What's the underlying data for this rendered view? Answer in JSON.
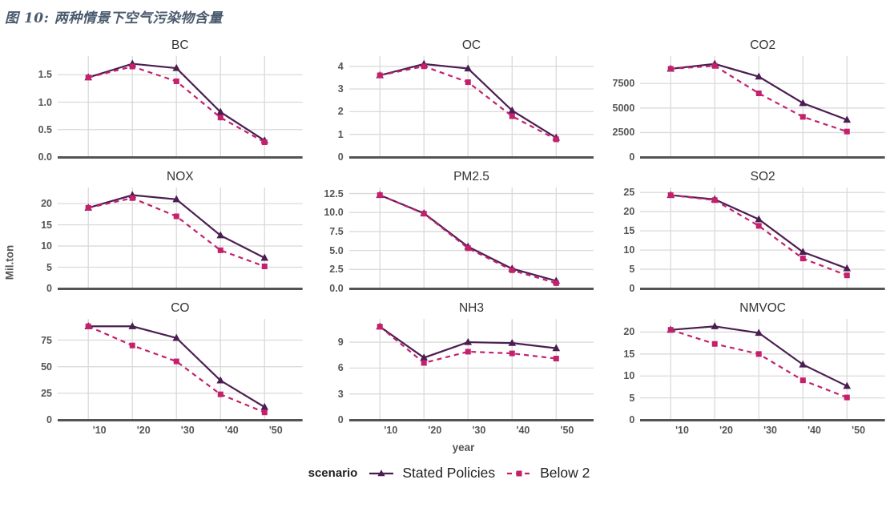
{
  "title": "图 10: 两种情景下空气污染物含量",
  "axes": {
    "x_label": "year",
    "y_label": "Mil.ton",
    "x_tick_labels": [
      "'10",
      "'20",
      "'30",
      "'40",
      "'50"
    ]
  },
  "legend": {
    "title": "scenario",
    "entries": [
      "Stated Policies",
      "Below 2"
    ]
  },
  "colors": {
    "stated_policies": "#4b1e52",
    "below_2": "#c4206c",
    "grid_line": "#dadada",
    "axis_line": "#545454",
    "tick_text": "#555555"
  },
  "chart_data": [
    {
      "type": "line",
      "title": "BC",
      "x": [
        2010,
        2020,
        2030,
        2040,
        2050
      ],
      "series": [
        {
          "name": "Stated Policies",
          "values": [
            1.45,
            1.7,
            1.62,
            0.82,
            0.3
          ]
        },
        {
          "name": "Below 2",
          "values": [
            1.45,
            1.65,
            1.38,
            0.72,
            0.27
          ]
        }
      ],
      "ylim": [
        0,
        1.84
      ],
      "yticks": {
        "values": [
          0,
          0.5,
          1.0,
          1.5
        ],
        "labels": [
          "0.0",
          "0.5",
          "1.0",
          "1.5"
        ]
      }
    },
    {
      "type": "line",
      "title": "OC",
      "x": [
        2010,
        2020,
        2030,
        2040,
        2050
      ],
      "series": [
        {
          "name": "Stated Policies",
          "values": [
            3.6,
            4.1,
            3.9,
            2.05,
            0.85
          ]
        },
        {
          "name": "Below 2",
          "values": [
            3.6,
            4.0,
            3.3,
            1.8,
            0.78
          ]
        }
      ],
      "ylim": [
        0,
        4.45
      ],
      "yticks": {
        "values": [
          0,
          1,
          2,
          3,
          4
        ],
        "labels": [
          "0",
          "1",
          "2",
          "3",
          "4"
        ]
      }
    },
    {
      "type": "line",
      "title": "CO2",
      "x": [
        2010,
        2020,
        2030,
        2040,
        2050
      ],
      "series": [
        {
          "name": "Stated Policies",
          "values": [
            9000,
            9500,
            8200,
            5500,
            3800
          ]
        },
        {
          "name": "Below 2",
          "values": [
            9000,
            9300,
            6500,
            4100,
            2600
          ]
        }
      ],
      "ylim": [
        0,
        10300
      ],
      "yticks": {
        "values": [
          0,
          2500,
          5000,
          7500
        ],
        "labels": [
          "0",
          "2500",
          "5000",
          "7500"
        ]
      }
    },
    {
      "type": "line",
      "title": "NOX",
      "x": [
        2010,
        2020,
        2030,
        2040,
        2050
      ],
      "series": [
        {
          "name": "Stated Policies",
          "values": [
            19,
            22,
            21,
            12.5,
            7.2
          ]
        },
        {
          "name": "Below 2",
          "values": [
            19,
            21.3,
            17,
            9,
            5.2
          ]
        }
      ],
      "ylim": [
        0,
        23.8
      ],
      "yticks": {
        "values": [
          0,
          5,
          10,
          15,
          20
        ],
        "labels": [
          "0",
          "5",
          "10",
          "15",
          "20"
        ]
      }
    },
    {
      "type": "line",
      "title": "PM2.5",
      "x": [
        2010,
        2020,
        2030,
        2040,
        2050
      ],
      "series": [
        {
          "name": "Stated Policies",
          "values": [
            12.3,
            9.9,
            5.5,
            2.6,
            1.0
          ]
        },
        {
          "name": "Below 2",
          "values": [
            12.3,
            9.85,
            5.3,
            2.4,
            0.7
          ]
        }
      ],
      "ylim": [
        0,
        13.3
      ],
      "yticks": {
        "values": [
          0,
          2.5,
          5.0,
          7.5,
          10.0,
          12.5
        ],
        "labels": [
          "0.0",
          "2.5",
          "5.0",
          "7.5",
          "10.0",
          "12.5"
        ]
      }
    },
    {
      "type": "line",
      "title": "SO2",
      "x": [
        2010,
        2020,
        2030,
        2040,
        2050
      ],
      "series": [
        {
          "name": "Stated Policies",
          "values": [
            24.3,
            23.2,
            18,
            9.5,
            5.2
          ]
        },
        {
          "name": "Below 2",
          "values": [
            24.3,
            23.0,
            16.3,
            7.8,
            3.4
          ]
        }
      ],
      "ylim": [
        0,
        26.3
      ],
      "yticks": {
        "values": [
          0,
          5,
          10,
          15,
          20,
          25
        ],
        "labels": [
          "0",
          "5",
          "10",
          "15",
          "20",
          "25"
        ]
      }
    },
    {
      "type": "line",
      "title": "CO",
      "x": [
        2010,
        2020,
        2030,
        2040,
        2050
      ],
      "series": [
        {
          "name": "Stated Policies",
          "values": [
            88,
            88,
            77,
            37,
            12
          ]
        },
        {
          "name": "Below 2",
          "values": [
            88,
            70,
            55,
            24,
            7
          ]
        }
      ],
      "ylim": [
        0,
        95
      ],
      "yticks": {
        "values": [
          0,
          25,
          50,
          75
        ],
        "labels": [
          "0",
          "25",
          "50",
          "75"
        ]
      }
    },
    {
      "type": "line",
      "title": "NH3",
      "x": [
        2010,
        2020,
        2030,
        2040,
        2050
      ],
      "series": [
        {
          "name": "Stated Policies",
          "values": [
            10.8,
            7.2,
            9.0,
            8.9,
            8.3
          ]
        },
        {
          "name": "Below 2",
          "values": [
            10.8,
            6.6,
            7.9,
            7.7,
            7.1
          ]
        }
      ],
      "ylim": [
        0,
        11.7
      ],
      "yticks": {
        "values": [
          0,
          3,
          6,
          9
        ],
        "labels": [
          "0",
          "3",
          "6",
          "9"
        ]
      }
    },
    {
      "type": "line",
      "title": "NMVOC",
      "x": [
        2010,
        2020,
        2030,
        2040,
        2050
      ],
      "series": [
        {
          "name": "Stated Policies",
          "values": [
            20.5,
            21.3,
            19.8,
            12.6,
            7.7
          ]
        },
        {
          "name": "Below 2",
          "values": [
            20.5,
            17.3,
            15.0,
            9.0,
            5.1
          ]
        }
      ],
      "ylim": [
        0,
        23
      ],
      "yticks": {
        "values": [
          0,
          5,
          10,
          15,
          20
        ],
        "labels": [
          "0",
          "5",
          "10",
          "15",
          "20"
        ]
      }
    }
  ]
}
